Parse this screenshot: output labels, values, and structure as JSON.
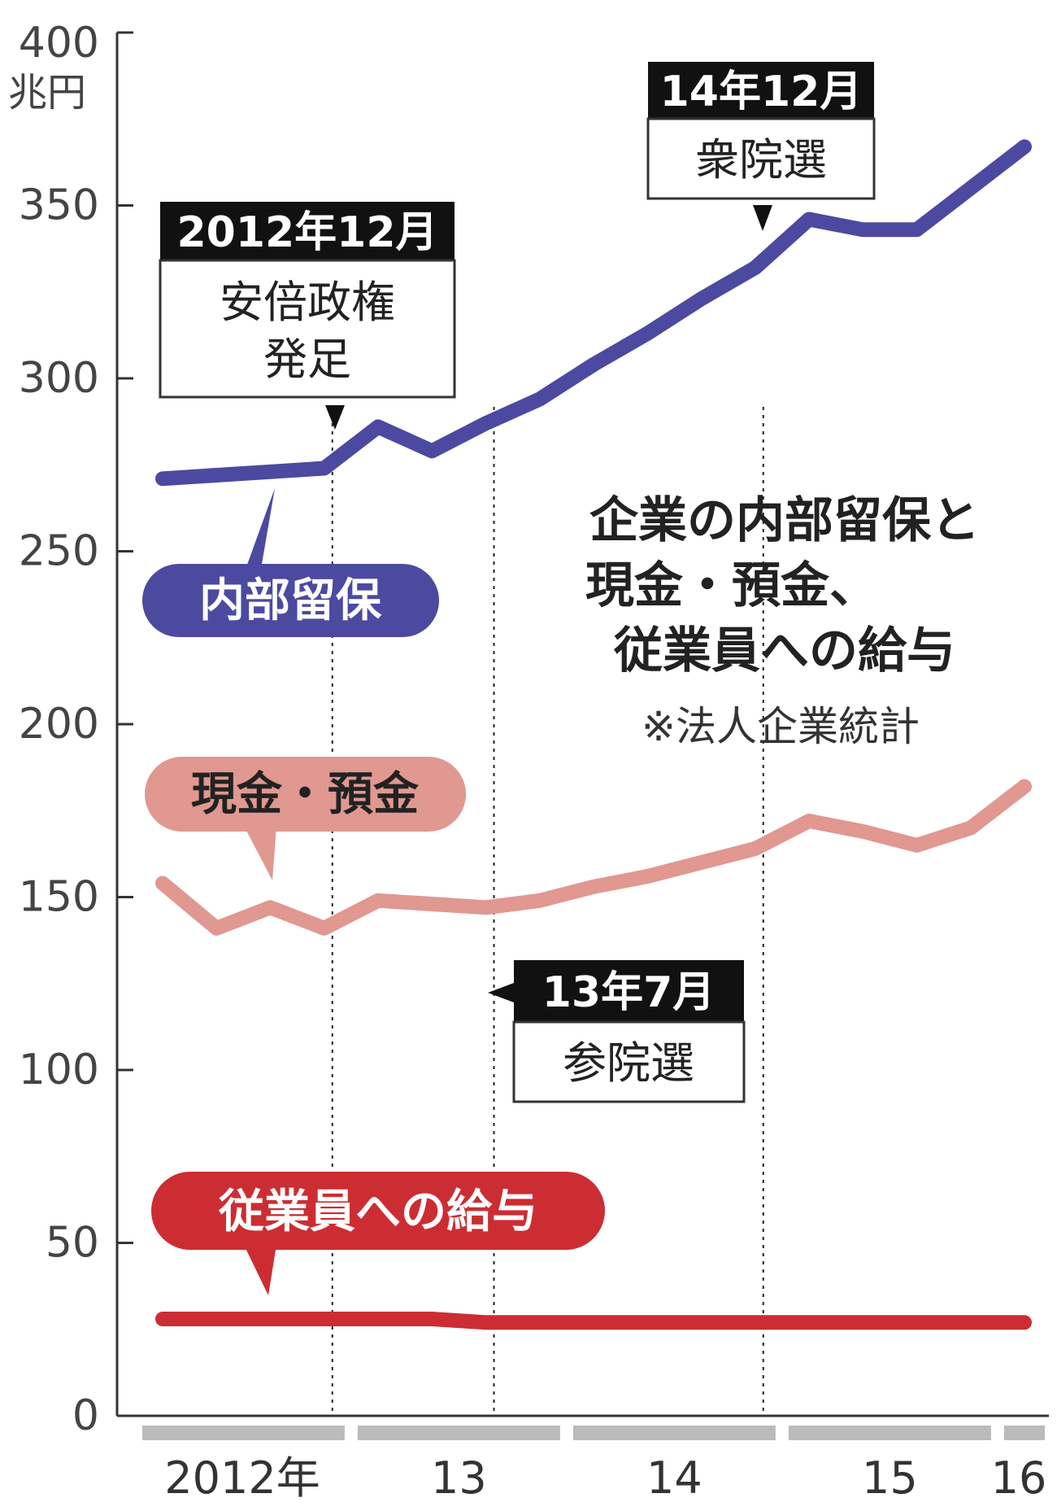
{
  "chart_data": {
    "type": "line",
    "title_lines": [
      "企業の内部留保と",
      "現金・預金、",
      "従業員への給与"
    ],
    "source": "※法人企業統計",
    "y_unit": "兆円",
    "ylim": [
      0,
      400
    ],
    "y_ticks": [
      "400",
      "350",
      "300",
      "250",
      "200",
      "150",
      "100",
      "50",
      "0"
    ],
    "x_labels": [
      "2012年",
      "13",
      "14",
      "15",
      "16"
    ],
    "x": [
      "2012Q1",
      "2012Q2",
      "2012Q3",
      "2012Q4",
      "2013Q1",
      "2013Q2",
      "2013Q3",
      "2013Q4",
      "2014Q1",
      "2014Q2",
      "2014Q3",
      "2014Q4",
      "2015Q1",
      "2015Q2",
      "2015Q3",
      "2015Q4",
      "2016Q1"
    ],
    "series": [
      {
        "name": "内部留保",
        "color": "#4b4aa0",
        "values": [
          271,
          272,
          273,
          274,
          286,
          279,
          287,
          294,
          304,
          313,
          323,
          332,
          346,
          343,
          343,
          355,
          367
        ]
      },
      {
        "name": "現金・預金",
        "color": "#e09890",
        "values": [
          154,
          141,
          147,
          141,
          149,
          148,
          147,
          149,
          153,
          156,
          160,
          164,
          172,
          169,
          165,
          170,
          182
        ]
      },
      {
        "name": "従業員への給与",
        "color": "#cc2d33",
        "values": [
          28,
          28,
          28,
          28,
          28,
          28,
          27,
          27,
          27,
          27,
          27,
          27,
          27,
          27,
          27,
          27,
          27
        ]
      }
    ],
    "events": [
      {
        "date_label": "2012年12月",
        "event_lines": [
          "安倍政権",
          "発足"
        ]
      },
      {
        "date_label": "13年7月",
        "event_lines": [
          "参院選"
        ]
      },
      {
        "date_label": "14年12月",
        "event_lines": [
          "衆院選"
        ]
      }
    ]
  }
}
